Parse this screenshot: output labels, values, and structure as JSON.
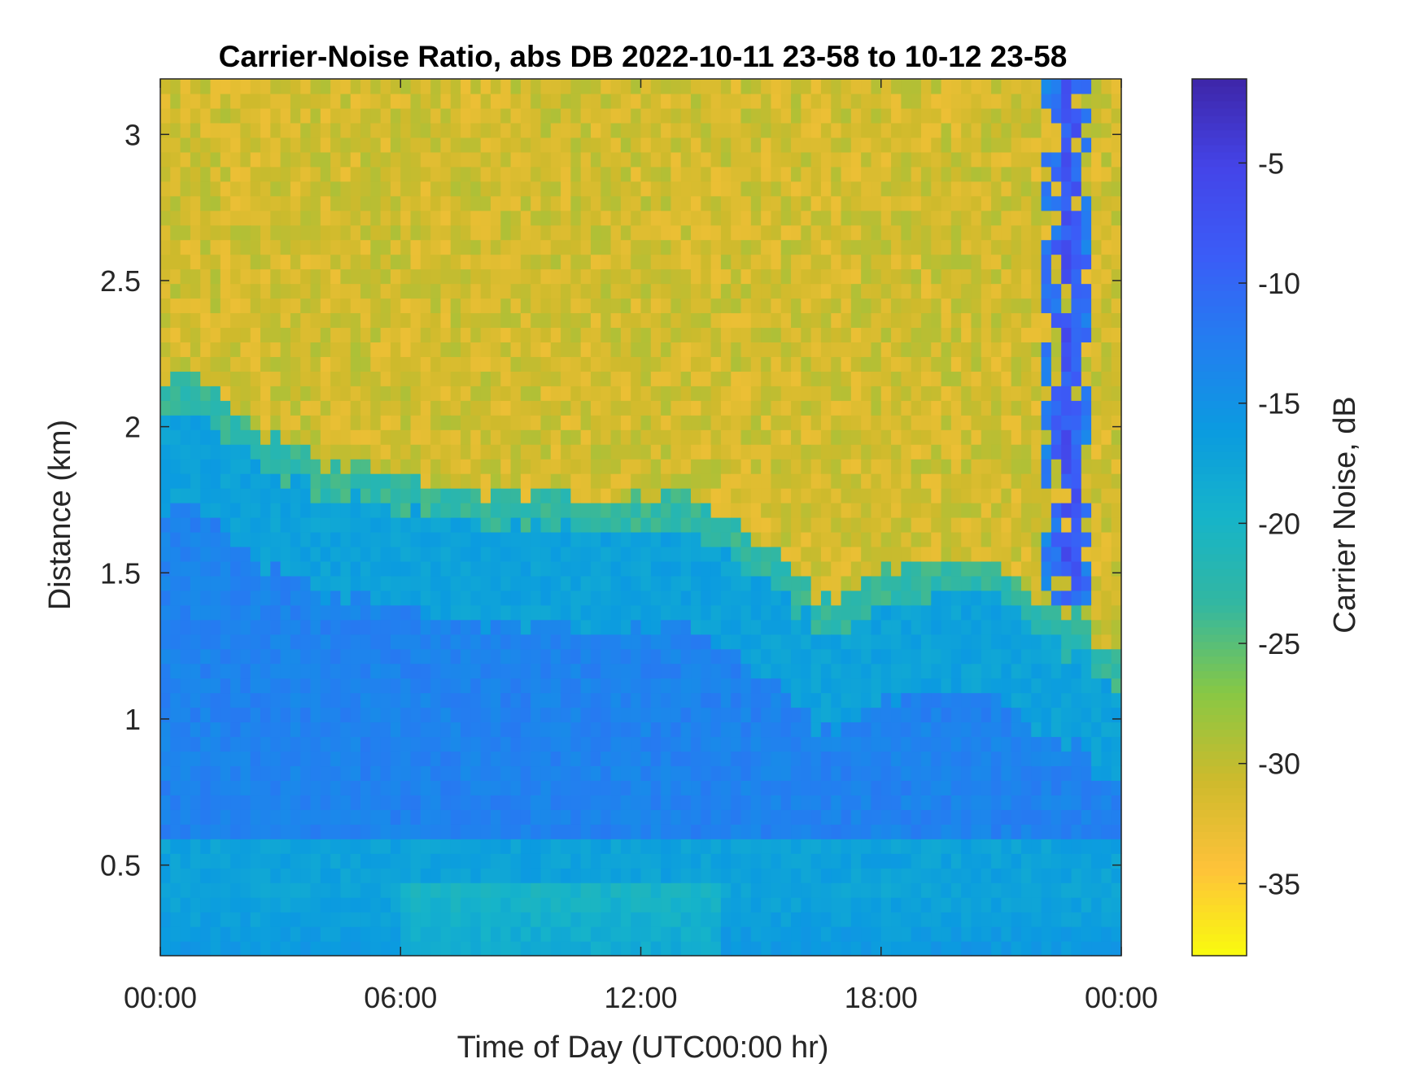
{
  "chart_data": {
    "type": "heatmap",
    "title": "Carrier-Noise Ratio, abs DB 2022-10-11 23-58 to 10-12 23-58",
    "xlabel": "Time of Day (UTC00:00 hr)",
    "ylabel": "Distance (km)",
    "xlim_hours": [
      0,
      24
    ],
    "ylim": [
      0.19,
      3.19
    ],
    "x_ticks": [
      {
        "value": 0,
        "label": "00:00"
      },
      {
        "value": 6,
        "label": "06:00"
      },
      {
        "value": 12,
        "label": "12:00"
      },
      {
        "value": 18,
        "label": "18:00"
      },
      {
        "value": 24,
        "label": "00:00"
      }
    ],
    "y_ticks": [
      {
        "value": 0.5,
        "label": "0.5"
      },
      {
        "value": 1,
        "label": "1"
      },
      {
        "value": 1.5,
        "label": "1.5"
      },
      {
        "value": 2,
        "label": "2"
      },
      {
        "value": 2.5,
        "label": "2.5"
      },
      {
        "value": 3,
        "label": "3"
      }
    ],
    "colorbar": {
      "label": "Carrier Noise, dB",
      "range": [
        -38,
        -1.5
      ],
      "colormap": "parula (reversed: yellow = low, dark blue = high)",
      "ticks": [
        {
          "value": -5,
          "label": "-5"
        },
        {
          "value": -10,
          "label": "-10"
        },
        {
          "value": -15,
          "label": "-15"
        },
        {
          "value": -20,
          "label": "-20"
        },
        {
          "value": -25,
          "label": "-25"
        },
        {
          "value": -30,
          "label": "-30"
        },
        {
          "value": -35,
          "label": "-35"
        }
      ],
      "colors": [
        "#f9fb0e",
        "#fec23a",
        "#ceba2c",
        "#88c844",
        "#33b7a0",
        "#16b4c9",
        "#0b9be0",
        "#237ef0",
        "#3b5cf7",
        "#4444e8",
        "#3e26a8"
      ]
    },
    "boundary_layer_top_km": {
      "hours": [
        0,
        0.7,
        2,
        3.5,
        5,
        7,
        9,
        11,
        12.5,
        14,
        15.5,
        17,
        18,
        20,
        22,
        23.2,
        24
      ],
      "km": [
        2.15,
        2.18,
        2.05,
        1.9,
        1.85,
        1.78,
        1.78,
        1.78,
        1.77,
        1.72,
        1.55,
        1.38,
        1.5,
        1.6,
        1.42,
        1.32,
        1.17
      ]
    },
    "noise_level_db": -31,
    "boundary_layer_level_db": -17,
    "core_level_db": -13,
    "near_surface_level_db": -20,
    "cloud_streak": {
      "hours": [
        22.1,
        23.3
      ],
      "km": [
        1.4,
        3.19
      ],
      "level_db": -7
    }
  }
}
